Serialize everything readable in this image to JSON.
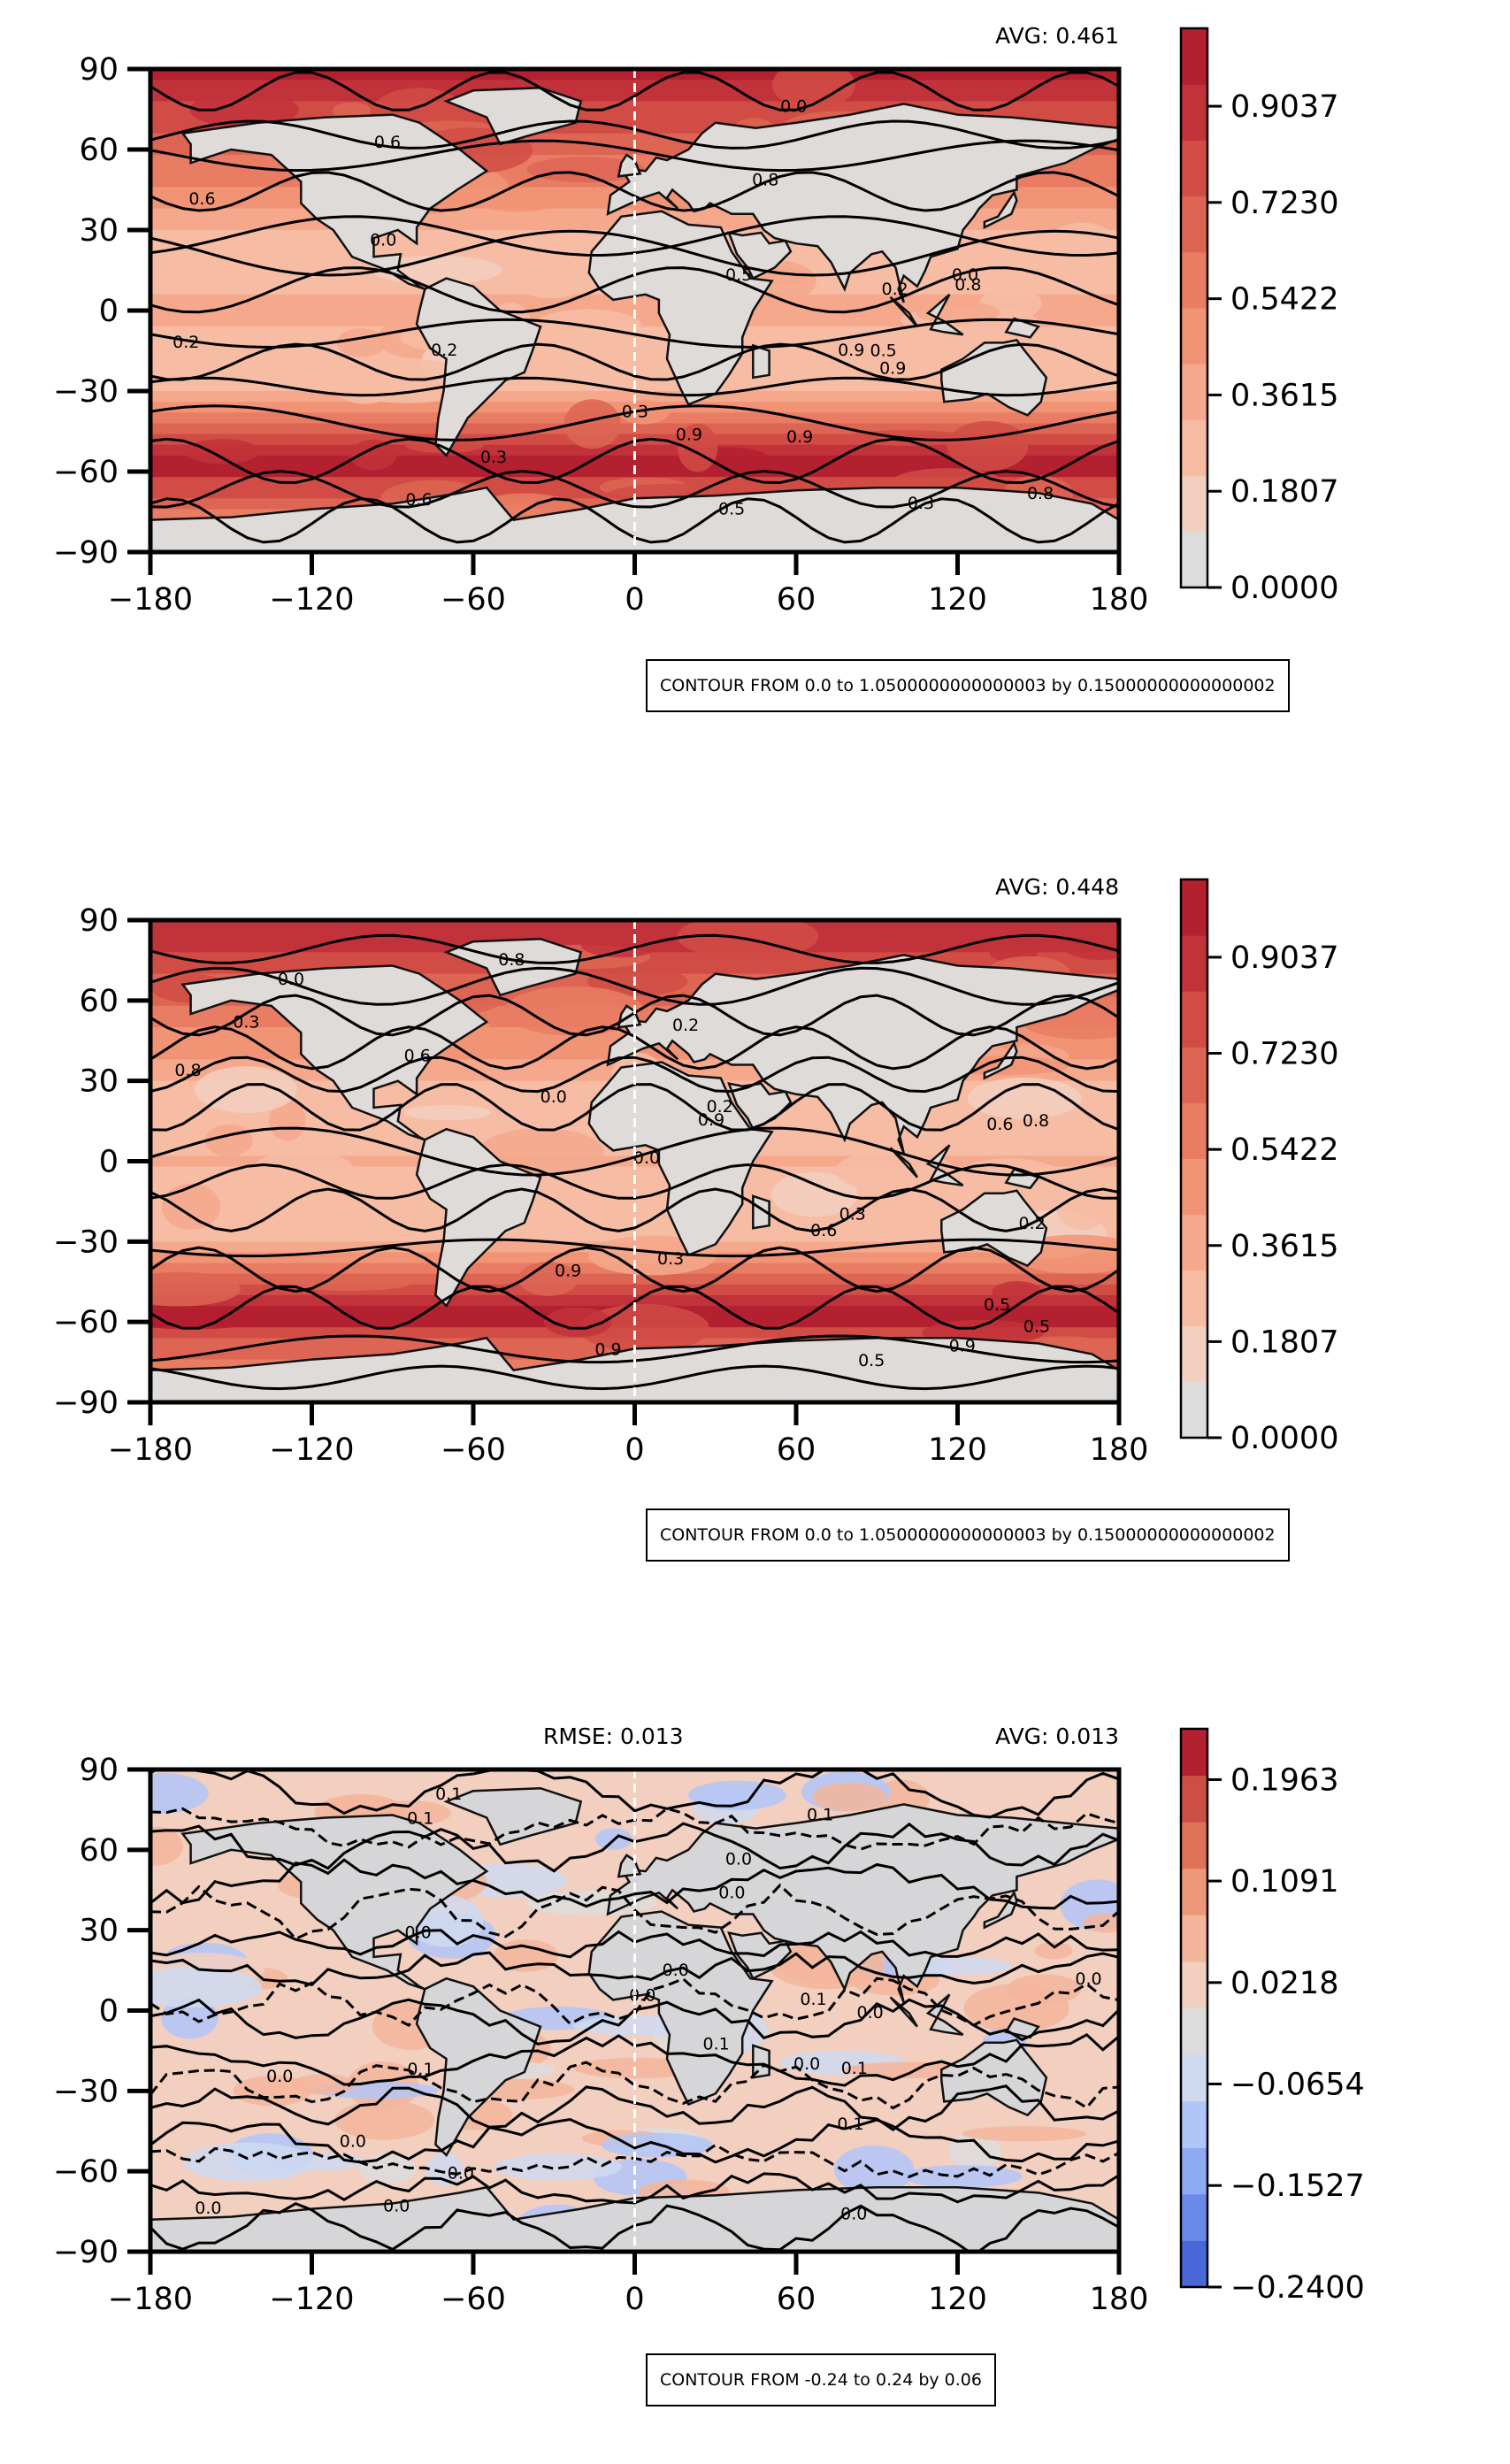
{
  "chart_data": [
    {
      "type": "contour-map",
      "avg_label": "AVG: 0.461",
      "x_ticks": [
        "−180",
        "−120",
        "−60",
        "0",
        "60",
        "120",
        "180"
      ],
      "y_ticks": [
        "90",
        "60",
        "30",
        "0",
        "−30",
        "−60",
        "−90"
      ],
      "xlim": [
        -180,
        180
      ],
      "ylim": [
        -90,
        90
      ],
      "colorbar": {
        "min": 0.0,
        "max": 1.05,
        "ticks": [
          0.0,
          0.1807,
          0.3615,
          0.5422,
          0.723,
          0.9037
        ],
        "tick_labels": [
          "0.0000",
          "0.1807",
          "0.3615",
          "0.5422",
          "0.7230",
          "0.9037"
        ],
        "colors": [
          "#dddcdc",
          "#f2cfbf",
          "#f6bca4",
          "#f5a88c",
          "#f19476",
          "#e97d63",
          "#dd6553",
          "#d14c45",
          "#c2323a",
          "#b3202f"
        ]
      },
      "contour_label": "CONTOUR FROM 0.0 to 1.0500000000000003 by 0.15000000000000002",
      "line_labels": [
        "0.9",
        "0.8",
        "0.6",
        "0.5",
        "0.3",
        "0.2",
        "0.0"
      ]
    },
    {
      "type": "contour-map",
      "avg_label": "AVG: 0.448",
      "x_ticks": [
        "−180",
        "−120",
        "−60",
        "0",
        "60",
        "120",
        "180"
      ],
      "y_ticks": [
        "90",
        "60",
        "30",
        "0",
        "−30",
        "−60",
        "−90"
      ],
      "xlim": [
        -180,
        180
      ],
      "ylim": [
        -90,
        90
      ],
      "colorbar": {
        "min": 0.0,
        "max": 1.05,
        "ticks": [
          0.0,
          0.1807,
          0.3615,
          0.5422,
          0.723,
          0.9037
        ],
        "tick_labels": [
          "0.0000",
          "0.1807",
          "0.3615",
          "0.5422",
          "0.7230",
          "0.9037"
        ],
        "colors": [
          "#dddcdc",
          "#f2cfbf",
          "#f6bca4",
          "#f5a88c",
          "#f19476",
          "#e97d63",
          "#dd6553",
          "#d14c45",
          "#c2323a",
          "#b3202f"
        ]
      },
      "contour_label": "CONTOUR FROM 0.0 to 1.0500000000000003 by 0.15000000000000002",
      "line_labels": [
        "0.9",
        "0.8",
        "0.6",
        "0.5",
        "0.3",
        "0.2",
        "0.0"
      ]
    },
    {
      "type": "contour-map",
      "rmse_label": "RMSE: 0.013",
      "avg_label": "AVG: 0.013",
      "x_ticks": [
        "−180",
        "−120",
        "−60",
        "0",
        "60",
        "120",
        "180"
      ],
      "y_ticks": [
        "90",
        "60",
        "30",
        "0",
        "−30",
        "−60",
        "−90"
      ],
      "xlim": [
        -180,
        180
      ],
      "ylim": [
        -90,
        90
      ],
      "colorbar": {
        "min": -0.24,
        "max": 0.24,
        "ticks": [
          -0.24,
          -0.1527,
          -0.0654,
          0.0218,
          0.1091,
          0.1963
        ],
        "tick_labels": [
          "−0.2400",
          "−0.1527",
          "−0.0654",
          "0.0218",
          "0.1091",
          "0.1963"
        ],
        "colors": [
          "#4a67d8",
          "#6a8ae8",
          "#8eaaf2",
          "#b1c6f8",
          "#cfd9f0",
          "#dddcdc",
          "#f2cfbf",
          "#f3b59b",
          "#ec9878",
          "#de7358",
          "#cb4f44",
          "#b3202f"
        ]
      },
      "contour_label": "CONTOUR FROM -0.24 to 0.24 by 0.06",
      "line_labels": [
        "0.0",
        "0.1",
        "0.0",
        "0.1",
        "0.0",
        "0.0"
      ]
    }
  ]
}
